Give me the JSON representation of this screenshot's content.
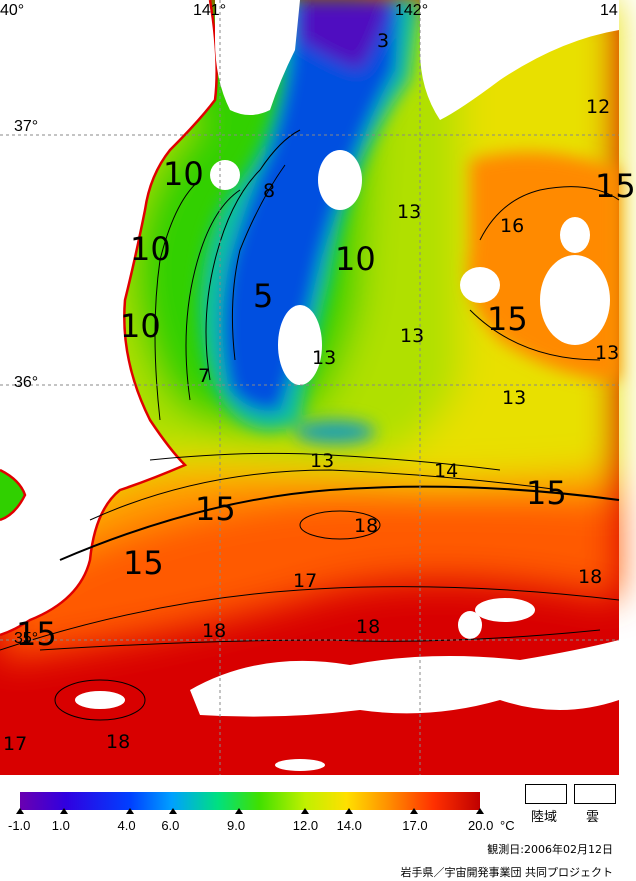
{
  "map": {
    "lon_labels": [
      "40°",
      "141°",
      "142°",
      "14"
    ],
    "lat_labels": [
      "37°",
      "36°",
      "35°"
    ]
  },
  "contour_labels": [
    {
      "text": "3",
      "size": "small"
    },
    {
      "text": "12",
      "size": "small"
    },
    {
      "text": "10",
      "size": "big"
    },
    {
      "text": "8",
      "size": "small"
    },
    {
      "text": "15",
      "size": "big"
    },
    {
      "text": "13",
      "size": "small"
    },
    {
      "text": "16",
      "size": "small"
    },
    {
      "text": "10",
      "size": "big"
    },
    {
      "text": "10",
      "size": "big"
    },
    {
      "text": "5",
      "size": "big"
    },
    {
      "text": "10",
      "size": "big"
    },
    {
      "text": "15",
      "size": "big"
    },
    {
      "text": "13",
      "size": "small"
    },
    {
      "text": "13",
      "size": "small"
    },
    {
      "text": "13",
      "size": "small"
    },
    {
      "text": "7",
      "size": "small"
    },
    {
      "text": "13",
      "size": "small"
    },
    {
      "text": "13",
      "size": "small"
    },
    {
      "text": "14",
      "size": "small"
    },
    {
      "text": "15",
      "size": "big"
    },
    {
      "text": "15",
      "size": "big"
    },
    {
      "text": "18",
      "size": "small"
    },
    {
      "text": "15",
      "size": "big"
    },
    {
      "text": "17",
      "size": "small"
    },
    {
      "text": "18",
      "size": "small"
    },
    {
      "text": "18",
      "size": "small"
    },
    {
      "text": "18",
      "size": "small"
    },
    {
      "text": "15",
      "size": "big"
    },
    {
      "text": "17",
      "size": "small"
    },
    {
      "text": "18",
      "size": "small"
    }
  ],
  "legend": {
    "ticks": [
      "-1.0",
      "1.0",
      "4.0",
      "6.0",
      "9.0",
      "12.0",
      "14.0",
      "17.0",
      "20.0"
    ],
    "tick_values": [
      -1,
      1,
      4,
      6,
      9,
      12,
      14,
      17,
      20
    ],
    "unit": "°C",
    "land_label": "陸域",
    "cloud_label": "雲"
  },
  "date_text": "観測日:2006年02月12日",
  "credit_text": "岩手県／宇宙開発事業団 共同プロジェクト",
  "colors": {
    "coast_line": "#e00000",
    "grid": "#888888"
  }
}
